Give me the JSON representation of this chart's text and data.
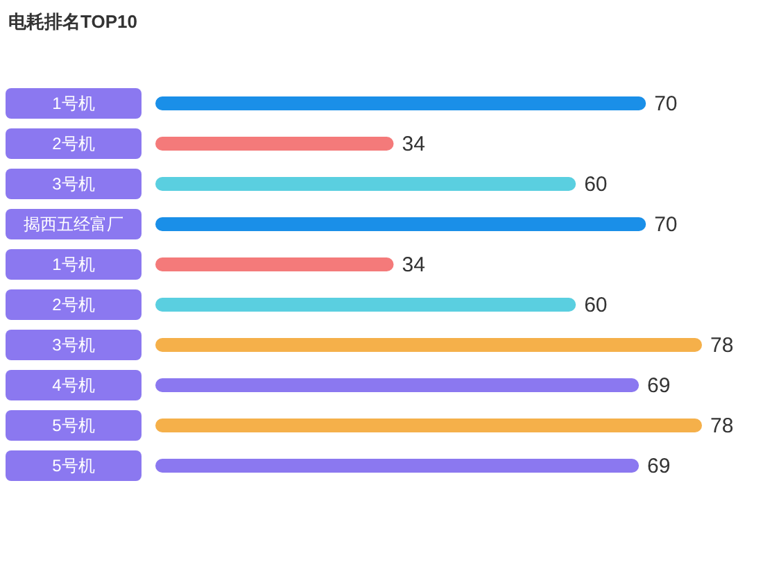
{
  "chart_data": {
    "type": "bar",
    "orientation": "horizontal",
    "title": "电耗排名TOP10",
    "categories": [
      "1号机",
      "2号机",
      "3号机",
      "揭西五经富厂",
      "1号机",
      "2号机",
      "3号机",
      "4号机",
      "5号机",
      "5号机"
    ],
    "values": [
      70,
      34,
      60,
      70,
      34,
      60,
      78,
      69,
      78,
      69
    ],
    "colors": [
      "#1a8fe8",
      "#f47a7a",
      "#5acfe0",
      "#1a8fe8",
      "#f47a7a",
      "#5acfe0",
      "#f5b04a",
      "#8b78f0",
      "#f5b04a",
      "#8b78f0"
    ],
    "data_labels": true
  }
}
